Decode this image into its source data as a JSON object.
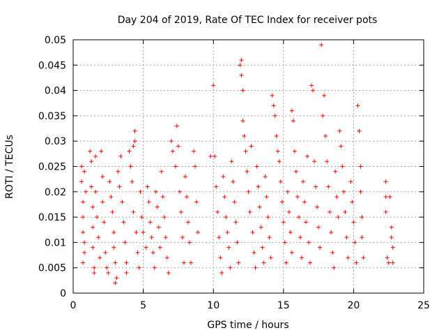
{
  "chart_data": {
    "type": "scatter",
    "title": "Day 204 of 2019, Rate Of TEC Index for receiver pots",
    "xlabel": "GPS time / hours",
    "ylabel": "ROTI / TECUs",
    "xlim": [
      0,
      25
    ],
    "ylim": [
      0,
      0.05
    ],
    "x_ticks": [
      0,
      5,
      10,
      15,
      20,
      25
    ],
    "y_ticks": [
      0,
      0.005,
      0.01,
      0.015,
      0.02,
      0.025,
      0.03,
      0.035,
      0.04,
      0.045,
      0.05
    ],
    "x_tick_labels": [
      "0",
      "5",
      "10",
      "15",
      "20",
      "25"
    ],
    "y_tick_labels": [
      "0",
      "0.005",
      "0.01",
      "0.015",
      "0.02",
      "0.025",
      "0.03",
      "0.035",
      "0.04",
      "0.045",
      "0.05"
    ],
    "grid": true,
    "marker": "+",
    "marker_color": "#ff0000",
    "points": [
      [
        0.6,
        0.025
      ],
      [
        0.6,
        0.022
      ],
      [
        0.7,
        0.018
      ],
      [
        0.7,
        0.015
      ],
      [
        0.7,
        0.012
      ],
      [
        0.8,
        0.01
      ],
      [
        0.8,
        0.008
      ],
      [
        0.7,
        0.006
      ],
      [
        0.8,
        0.024
      ],
      [
        0.9,
        0.02
      ],
      [
        1.2,
        0.028
      ],
      [
        1.3,
        0.026
      ],
      [
        1.3,
        0.021
      ],
      [
        1.4,
        0.017
      ],
      [
        1.4,
        0.013
      ],
      [
        1.4,
        0.009
      ],
      [
        1.5,
        0.005
      ],
      [
        1.5,
        0.004
      ],
      [
        1.6,
        0.027
      ],
      [
        1.6,
        0.02
      ],
      [
        1.7,
        0.015
      ],
      [
        1.8,
        0.011
      ],
      [
        1.9,
        0.007
      ],
      [
        2.0,
        0.028
      ],
      [
        2.1,
        0.023
      ],
      [
        2.1,
        0.018
      ],
      [
        2.2,
        0.014
      ],
      [
        2.3,
        0.008
      ],
      [
        2.4,
        0.005
      ],
      [
        2.5,
        0.004
      ],
      [
        2.6,
        0.022
      ],
      [
        2.7,
        0.019
      ],
      [
        2.8,
        0.016
      ],
      [
        2.9,
        0.012
      ],
      [
        2.9,
        0.009
      ],
      [
        3.0,
        0.006
      ],
      [
        3.0,
        0.002
      ],
      [
        3.1,
        0.003
      ],
      [
        3.2,
        0.024
      ],
      [
        3.3,
        0.021
      ],
      [
        3.4,
        0.027
      ],
      [
        3.5,
        0.018
      ],
      [
        3.6,
        0.014
      ],
      [
        3.7,
        0.01
      ],
      [
        3.8,
        0.006
      ],
      [
        3.8,
        0.004
      ],
      [
        4.0,
        0.028
      ],
      [
        4.1,
        0.025
      ],
      [
        4.2,
        0.022
      ],
      [
        4.3,
        0.016
      ],
      [
        4.3,
        0.029
      ],
      [
        4.4,
        0.032
      ],
      [
        4.4,
        0.03
      ],
      [
        4.5,
        0.012
      ],
      [
        4.6,
        0.008
      ],
      [
        4.7,
        0.005
      ],
      [
        4.8,
        0.02
      ],
      [
        4.9,
        0.015
      ],
      [
        5.0,
        0.012
      ],
      [
        5.2,
        0.009
      ],
      [
        5.3,
        0.021
      ],
      [
        5.4,
        0.018
      ],
      [
        5.5,
        0.014
      ],
      [
        5.6,
        0.011
      ],
      [
        5.7,
        0.008
      ],
      [
        5.8,
        0.005
      ],
      [
        5.9,
        0.02
      ],
      [
        6.0,
        0.017
      ],
      [
        6.1,
        0.013
      ],
      [
        6.2,
        0.009
      ],
      [
        6.3,
        0.024
      ],
      [
        6.4,
        0.019
      ],
      [
        6.5,
        0.015
      ],
      [
        6.6,
        0.011
      ],
      [
        6.7,
        0.007
      ],
      [
        6.8,
        0.004
      ],
      [
        7.0,
        0.03
      ],
      [
        7.1,
        0.028
      ],
      [
        7.3,
        0.025
      ],
      [
        7.4,
        0.033
      ],
      [
        7.5,
        0.029
      ],
      [
        7.6,
        0.02
      ],
      [
        7.7,
        0.016
      ],
      [
        7.8,
        0.011
      ],
      [
        7.9,
        0.006
      ],
      [
        8.0,
        0.023
      ],
      [
        8.1,
        0.019
      ],
      [
        8.2,
        0.014
      ],
      [
        8.3,
        0.01
      ],
      [
        8.4,
        0.006
      ],
      [
        8.6,
        0.028
      ],
      [
        8.7,
        0.025
      ],
      [
        8.8,
        0.018
      ],
      [
        8.9,
        0.012
      ],
      [
        9.8,
        0.027
      ],
      [
        10.0,
        0.041
      ],
      [
        10.1,
        0.027
      ],
      [
        10.2,
        0.021
      ],
      [
        10.3,
        0.016
      ],
      [
        10.4,
        0.011
      ],
      [
        10.5,
        0.007
      ],
      [
        10.6,
        0.004
      ],
      [
        10.7,
        0.023
      ],
      [
        10.8,
        0.019
      ],
      [
        10.9,
        0.015
      ],
      [
        11.0,
        0.012
      ],
      [
        11.1,
        0.009
      ],
      [
        11.2,
        0.005
      ],
      [
        11.3,
        0.026
      ],
      [
        11.4,
        0.022
      ],
      [
        11.5,
        0.018
      ],
      [
        11.6,
        0.014
      ],
      [
        11.7,
        0.01
      ],
      [
        11.8,
        0.006
      ],
      [
        11.9,
        0.045
      ],
      [
        12.0,
        0.046
      ],
      [
        12.0,
        0.043
      ],
      [
        12.1,
        0.04
      ],
      [
        12.1,
        0.034
      ],
      [
        12.2,
        0.031
      ],
      [
        12.3,
        0.028
      ],
      [
        12.4,
        0.024
      ],
      [
        12.5,
        0.02
      ],
      [
        12.6,
        0.016
      ],
      [
        12.7,
        0.029
      ],
      [
        12.8,
        0.012
      ],
      [
        12.9,
        0.008
      ],
      [
        13.0,
        0.005
      ],
      [
        13.1,
        0.025
      ],
      [
        13.2,
        0.021
      ],
      [
        13.3,
        0.017
      ],
      [
        13.4,
        0.013
      ],
      [
        13.5,
        0.009
      ],
      [
        13.6,
        0.006
      ],
      [
        13.7,
        0.023
      ],
      [
        13.8,
        0.019
      ],
      [
        13.9,
        0.015
      ],
      [
        14.0,
        0.011
      ],
      [
        14.1,
        0.007
      ],
      [
        14.2,
        0.039
      ],
      [
        14.3,
        0.037
      ],
      [
        14.4,
        0.035
      ],
      [
        14.5,
        0.031
      ],
      [
        14.6,
        0.028
      ],
      [
        14.7,
        0.026
      ],
      [
        14.8,
        0.022
      ],
      [
        14.9,
        0.018
      ],
      [
        15.0,
        0.014
      ],
      [
        15.1,
        0.01
      ],
      [
        15.2,
        0.006
      ],
      [
        15.3,
        0.02
      ],
      [
        15.4,
        0.016
      ],
      [
        15.5,
        0.012
      ],
      [
        15.6,
        0.008
      ],
      [
        15.6,
        0.036
      ],
      [
        15.7,
        0.034
      ],
      [
        15.8,
        0.028
      ],
      [
        15.9,
        0.024
      ],
      [
        16.0,
        0.019
      ],
      [
        16.1,
        0.015
      ],
      [
        16.2,
        0.011
      ],
      [
        16.3,
        0.007
      ],
      [
        16.4,
        0.022
      ],
      [
        16.5,
        0.018
      ],
      [
        16.6,
        0.014
      ],
      [
        16.7,
        0.027
      ],
      [
        16.8,
        0.01
      ],
      [
        16.9,
        0.006
      ],
      [
        17.0,
        0.041
      ],
      [
        17.1,
        0.04
      ],
      [
        17.2,
        0.026
      ],
      [
        17.3,
        0.021
      ],
      [
        17.4,
        0.017
      ],
      [
        17.5,
        0.013
      ],
      [
        17.6,
        0.009
      ],
      [
        17.7,
        0.049
      ],
      [
        17.8,
        0.035
      ],
      [
        17.9,
        0.039
      ],
      [
        18.0,
        0.031
      ],
      [
        18.1,
        0.026
      ],
      [
        18.2,
        0.021
      ],
      [
        18.3,
        0.016
      ],
      [
        18.4,
        0.012
      ],
      [
        18.5,
        0.008
      ],
      [
        18.6,
        0.005
      ],
      [
        18.7,
        0.024
      ],
      [
        18.8,
        0.019
      ],
      [
        18.9,
        0.015
      ],
      [
        19.0,
        0.032
      ],
      [
        19.1,
        0.029
      ],
      [
        19.2,
        0.025
      ],
      [
        19.3,
        0.02
      ],
      [
        19.4,
        0.016
      ],
      [
        19.5,
        0.011
      ],
      [
        19.6,
        0.007
      ],
      [
        19.8,
        0.022
      ],
      [
        19.9,
        0.018
      ],
      [
        20.0,
        0.014
      ],
      [
        20.1,
        0.01
      ],
      [
        20.2,
        0.006
      ],
      [
        20.3,
        0.037
      ],
      [
        20.4,
        0.032
      ],
      [
        20.5,
        0.025
      ],
      [
        20.5,
        0.02
      ],
      [
        20.6,
        0.015
      ],
      [
        20.6,
        0.011
      ],
      [
        20.7,
        0.007
      ],
      [
        22.3,
        0.022
      ],
      [
        22.3,
        0.019
      ],
      [
        22.3,
        0.016
      ],
      [
        22.4,
        0.007
      ],
      [
        22.5,
        0.006
      ],
      [
        22.6,
        0.019
      ],
      [
        22.7,
        0.013
      ],
      [
        22.7,
        0.011
      ],
      [
        22.8,
        0.009
      ],
      [
        22.8,
        0.006
      ]
    ]
  }
}
